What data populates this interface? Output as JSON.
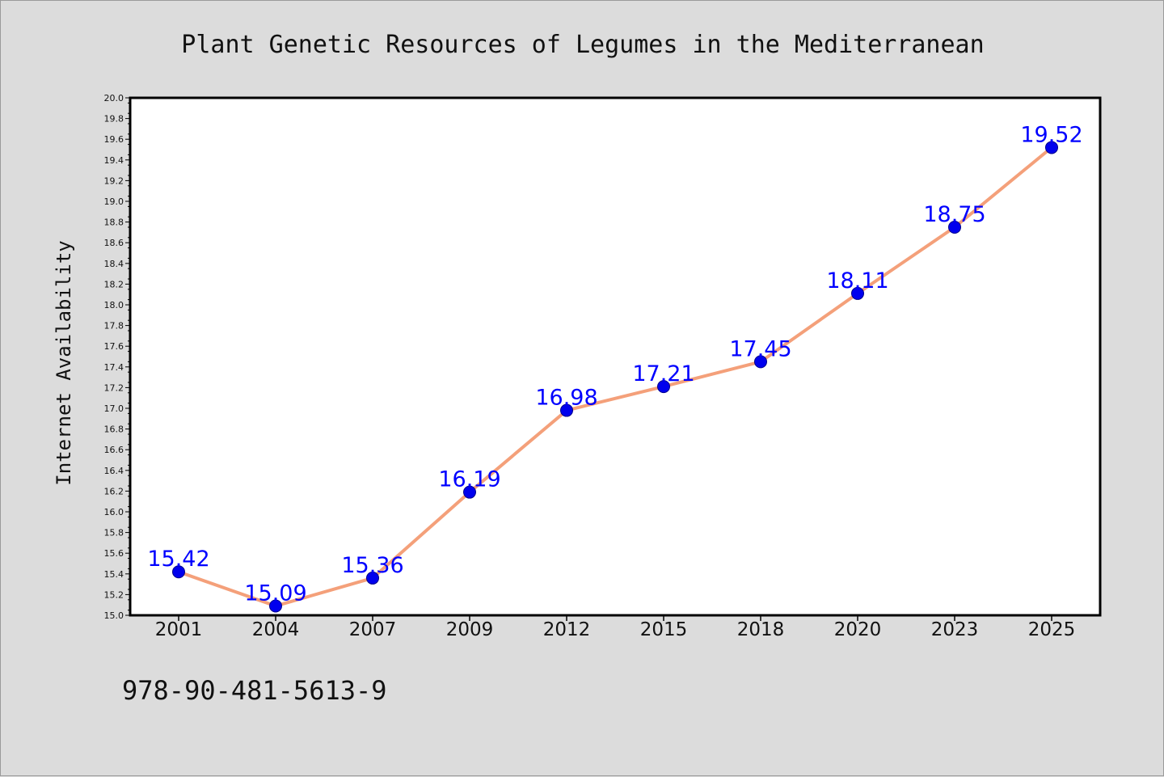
{
  "isbn_text": "978-90-481-5613-9",
  "colors": {
    "line": "#f4a07a",
    "marker": "#0000ee",
    "marker_edge": "#00008b",
    "data_label": "#0000ff",
    "plot_bg": "#ffffff",
    "page_bg": "#dcdcdc"
  },
  "chart_data": {
    "type": "line",
    "title": "Plant Genetic Resources of Legumes in the Mediterranean",
    "xlabel": "",
    "ylabel": "Internet Availability",
    "categories": [
      "2001",
      "2004",
      "2007",
      "2009",
      "2012",
      "2015",
      "2018",
      "2020",
      "2023",
      "2025"
    ],
    "series": [
      {
        "values": [
          15.42,
          15.09,
          15.36,
          16.19,
          16.98,
          17.21,
          17.45,
          18.11,
          18.75,
          19.52
        ],
        "labels": [
          "15.42",
          "15.09",
          "15.36",
          "16.19",
          "16.98",
          "17.21",
          "17.45",
          "18.11",
          "18.75",
          "19.52"
        ]
      }
    ],
    "ylim": [
      15.0,
      20.0
    ],
    "yticks": [
      "15.0",
      "15.2",
      "15.4",
      "15.6",
      "15.8",
      "16.0",
      "16.2",
      "16.4",
      "16.6",
      "16.8",
      "17.0",
      "17.2",
      "17.4",
      "17.6",
      "17.8",
      "18.0",
      "18.2",
      "18.4",
      "18.6",
      "18.8",
      "19.0",
      "19.2",
      "19.4",
      "19.6",
      "19.8",
      "20.0"
    ],
    "grid": false,
    "legend": "none"
  }
}
